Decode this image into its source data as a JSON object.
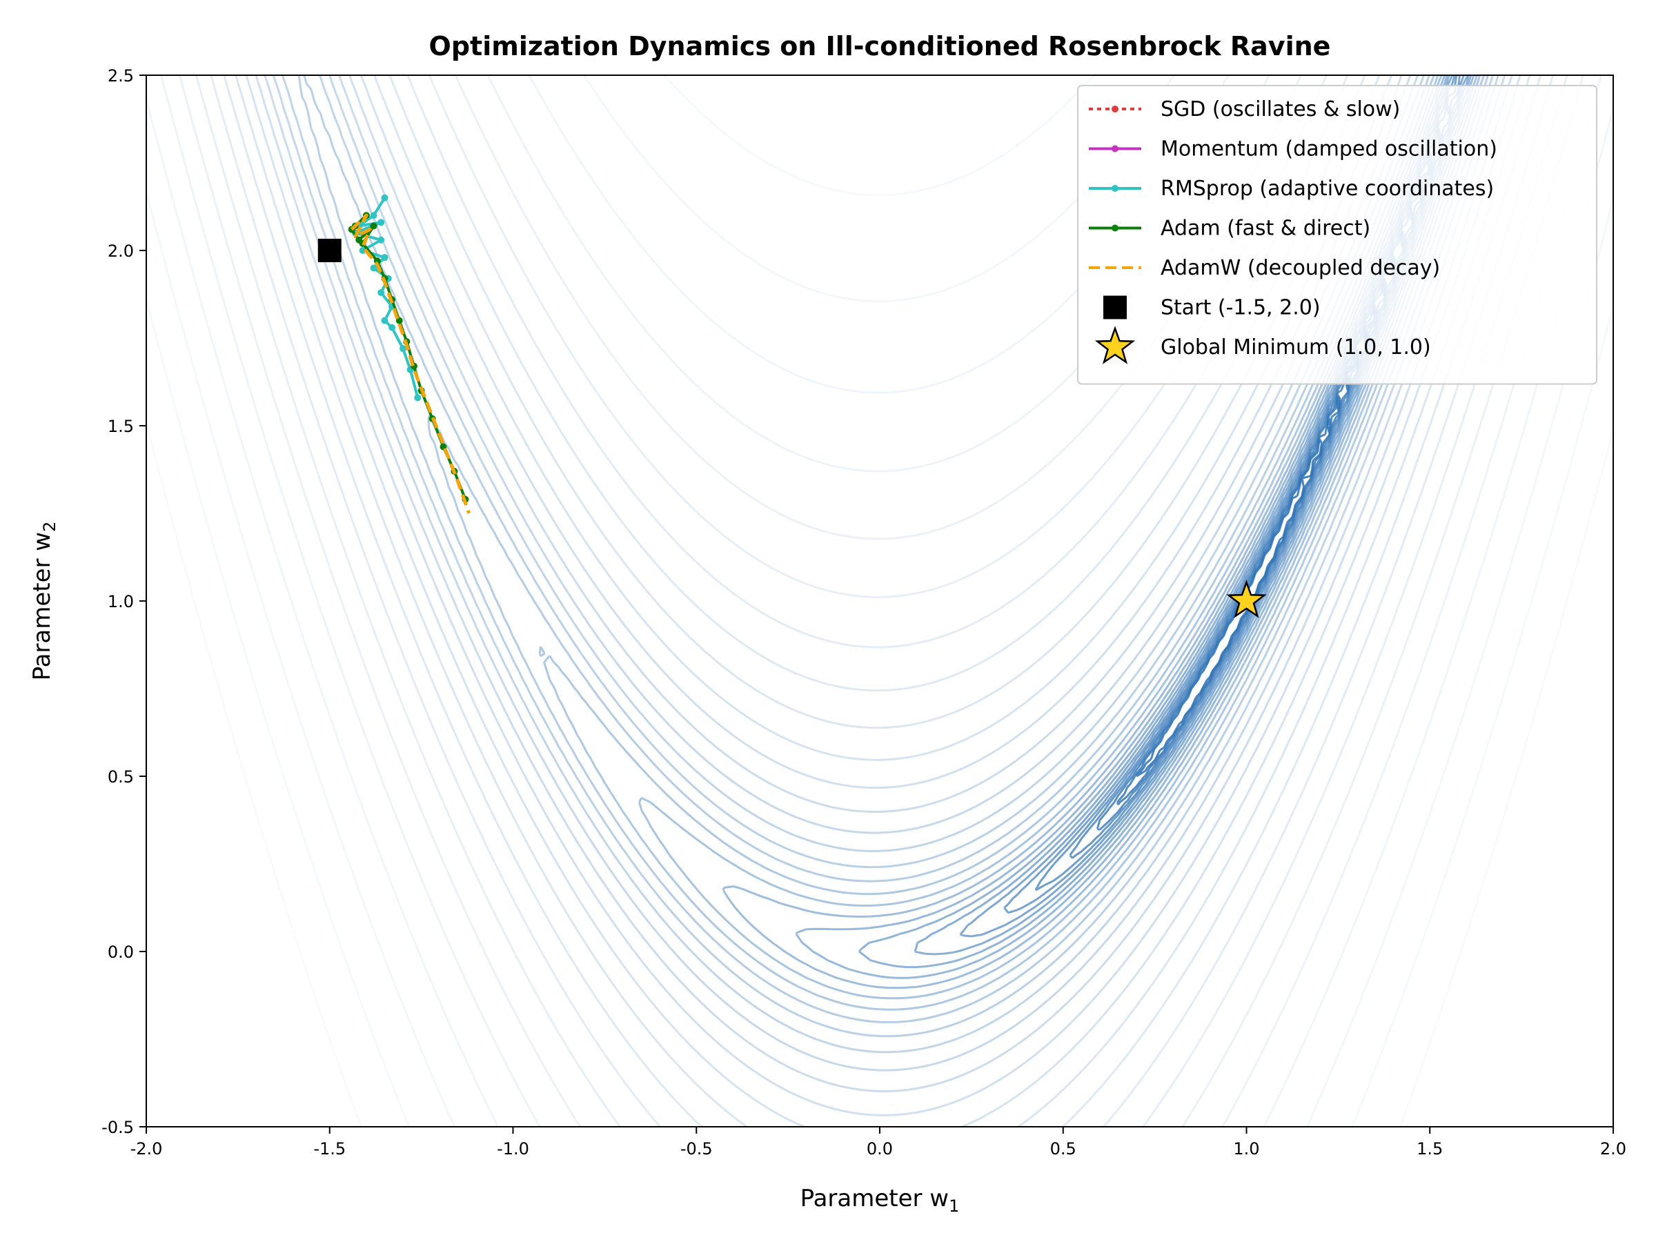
{
  "chart_data": {
    "type": "line",
    "title": "Optimization Dynamics on Ill-conditioned Rosenbrock Ravine",
    "xlabel": "Parameter w",
    "xlabel_sub": "1",
    "ylabel": "Parameter w",
    "ylabel_sub": "2",
    "xlim": [
      -2.0,
      2.0
    ],
    "ylim": [
      -0.5,
      2.5
    ],
    "xticks": [
      -2.0,
      -1.5,
      -1.0,
      -0.5,
      0.0,
      0.5,
      1.0,
      1.5,
      2.0
    ],
    "xtick_labels": [
      "-2.0",
      "-1.5",
      "-1.0",
      "-0.5",
      "0.0",
      "0.5",
      "1.0",
      "1.5",
      "2.0"
    ],
    "yticks": [
      -0.5,
      0.0,
      0.5,
      1.0,
      1.5,
      2.0,
      2.5
    ],
    "ytick_labels": [
      "-0.5",
      "0.0",
      "0.5",
      "1.0",
      "1.5",
      "2.0",
      "2.5"
    ],
    "grid": false,
    "legend_position": "top-right",
    "background": {
      "type": "contour",
      "function": "rosenbrock",
      "colormap": "Blues"
    },
    "series": [
      {
        "name": "SGD (oscillates & slow)",
        "color": "#e03c3c",
        "style": "dotted-marker",
        "points": [
          [
            -1.5,
            2.0
          ]
        ]
      },
      {
        "name": "Momentum (damped oscillation)",
        "color": "#c034c0",
        "style": "solid-marker",
        "points": [
          [
            -1.5,
            2.0
          ]
        ]
      },
      {
        "name": "RMSprop (adaptive coordinates)",
        "color": "#2ec4c4",
        "style": "solid-marker",
        "points": [
          [
            -1.35,
            2.15
          ],
          [
            -1.38,
            2.1
          ],
          [
            -1.42,
            2.07
          ],
          [
            -1.36,
            2.08
          ],
          [
            -1.43,
            2.05
          ],
          [
            -1.36,
            2.03
          ],
          [
            -1.41,
            2.0
          ],
          [
            -1.35,
            1.98
          ],
          [
            -1.38,
            1.95
          ],
          [
            -1.34,
            1.92
          ],
          [
            -1.36,
            1.88
          ],
          [
            -1.33,
            1.84
          ],
          [
            -1.35,
            1.8
          ],
          [
            -1.33,
            1.78
          ],
          [
            -1.3,
            1.72
          ],
          [
            -1.28,
            1.66
          ],
          [
            -1.26,
            1.58
          ]
        ]
      },
      {
        "name": "Adam (fast & direct)",
        "color": "#0a7f0a",
        "style": "solid-marker",
        "points": [
          [
            -1.43,
            2.07
          ],
          [
            -1.4,
            2.1
          ],
          [
            -1.44,
            2.06
          ],
          [
            -1.42,
            2.03
          ],
          [
            -1.38,
            2.07
          ],
          [
            -1.41,
            2.02
          ],
          [
            -1.37,
            1.97
          ],
          [
            -1.35,
            1.92
          ],
          [
            -1.33,
            1.86
          ],
          [
            -1.31,
            1.8
          ],
          [
            -1.29,
            1.74
          ],
          [
            -1.27,
            1.67
          ],
          [
            -1.25,
            1.6
          ],
          [
            -1.22,
            1.52
          ],
          [
            -1.19,
            1.44
          ],
          [
            -1.16,
            1.37
          ],
          [
            -1.13,
            1.29
          ]
        ]
      },
      {
        "name": "AdamW (decoupled decay)",
        "color": "#f5a40a",
        "style": "dashed",
        "points": [
          [
            -1.44,
            2.06
          ],
          [
            -1.4,
            2.1
          ],
          [
            -1.43,
            2.04
          ],
          [
            -1.39,
            2.06
          ],
          [
            -1.41,
            2.01
          ],
          [
            -1.37,
            1.96
          ],
          [
            -1.35,
            1.91
          ],
          [
            -1.33,
            1.85
          ],
          [
            -1.31,
            1.79
          ],
          [
            -1.29,
            1.73
          ],
          [
            -1.27,
            1.66
          ],
          [
            -1.24,
            1.58
          ],
          [
            -1.21,
            1.5
          ],
          [
            -1.18,
            1.42
          ],
          [
            -1.15,
            1.34
          ],
          [
            -1.12,
            1.25
          ]
        ]
      }
    ],
    "markers": [
      {
        "name": "Start (-1.5, 2.0)",
        "shape": "square",
        "color": "#000000",
        "x": -1.5,
        "y": 2.0
      },
      {
        "name": "Global Minimum (1.0, 1.0)",
        "shape": "star",
        "color": "#ffd21e",
        "x": 1.0,
        "y": 1.0
      }
    ]
  }
}
